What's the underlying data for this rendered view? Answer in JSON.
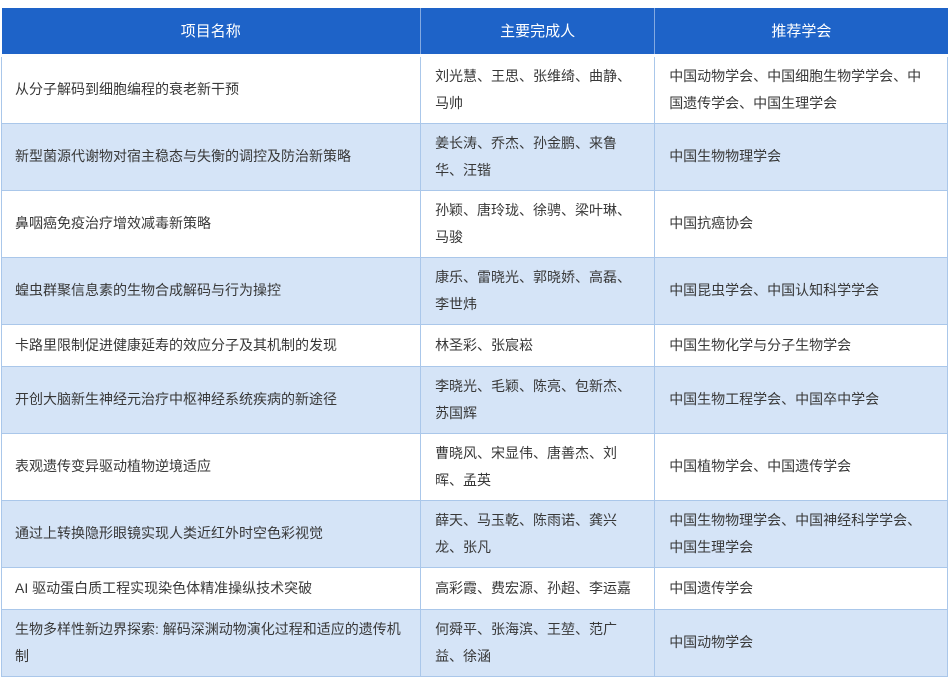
{
  "colors": {
    "header_bg": "#1e63c8",
    "header_text": "#ffffff",
    "row_alt_bg": "#d5e4f7",
    "row_bg": "#ffffff",
    "border_color": "#aac7ea",
    "body_text": "#383838"
  },
  "table": {
    "columns": [
      {
        "label": "项目名称"
      },
      {
        "label": "主要完成人"
      },
      {
        "label": "推荐学会"
      }
    ],
    "rows": [
      {
        "project": "从分子解码到细胞编程的衰老新干预",
        "contributors": "刘光慧、王思、张维绮、曲静、马帅",
        "societies": "中国动物学会、中国细胞生物学学会、中国遗传学会、中国生理学会"
      },
      {
        "project": "新型菌源代谢物对宿主稳态与失衡的调控及防治新策略",
        "contributors": "姜长涛、乔杰、孙金鹏、来鲁华、汪锴",
        "societies": "中国生物物理学会"
      },
      {
        "project": "鼻咽癌免疫治疗增效减毒新策略",
        "contributors": "孙颖、唐玲珑、徐骋、梁叶琳、马骏",
        "societies": "中国抗癌协会"
      },
      {
        "project": "蝗虫群聚信息素的生物合成解码与行为操控",
        "contributors": "康乐、雷晓光、郭晓娇、高磊、李世炜",
        "societies": "中国昆虫学会、中国认知科学学会"
      },
      {
        "project": "卡路里限制促进健康延寿的效应分子及其机制的发现",
        "contributors": "林圣彩、张宸崧",
        "societies": "中国生物化学与分子生物学会"
      },
      {
        "project": "开创大脑新生神经元治疗中枢神经系统疾病的新途径",
        "contributors": "李晓光、毛颖、陈亮、包新杰、苏国辉",
        "societies": "中国生物工程学会、中国卒中学会"
      },
      {
        "project": "表观遗传变异驱动植物逆境适应",
        "contributors": "曹晓风、宋显伟、唐善杰、刘晖、孟英",
        "societies": "中国植物学会、中国遗传学会"
      },
      {
        "project": "通过上转换隐形眼镜实现人类近红外时空色彩视觉",
        "contributors": "薛天、马玉乾、陈雨诺、龚兴龙、张凡",
        "societies": "中国生物物理学会、中国神经科学学会、中国生理学会"
      },
      {
        "project": "AI 驱动蛋白质工程实现染色体精准操纵技术突破",
        "contributors": "高彩霞、费宏源、孙超、李运嘉",
        "societies": "中国遗传学会"
      },
      {
        "project": "生物多样性新边界探索: 解码深渊动物演化过程和适应的遗传机制",
        "contributors": "何舜平、张海滨、王堃、范广益、徐涵",
        "societies": "中国动物学会"
      }
    ]
  }
}
